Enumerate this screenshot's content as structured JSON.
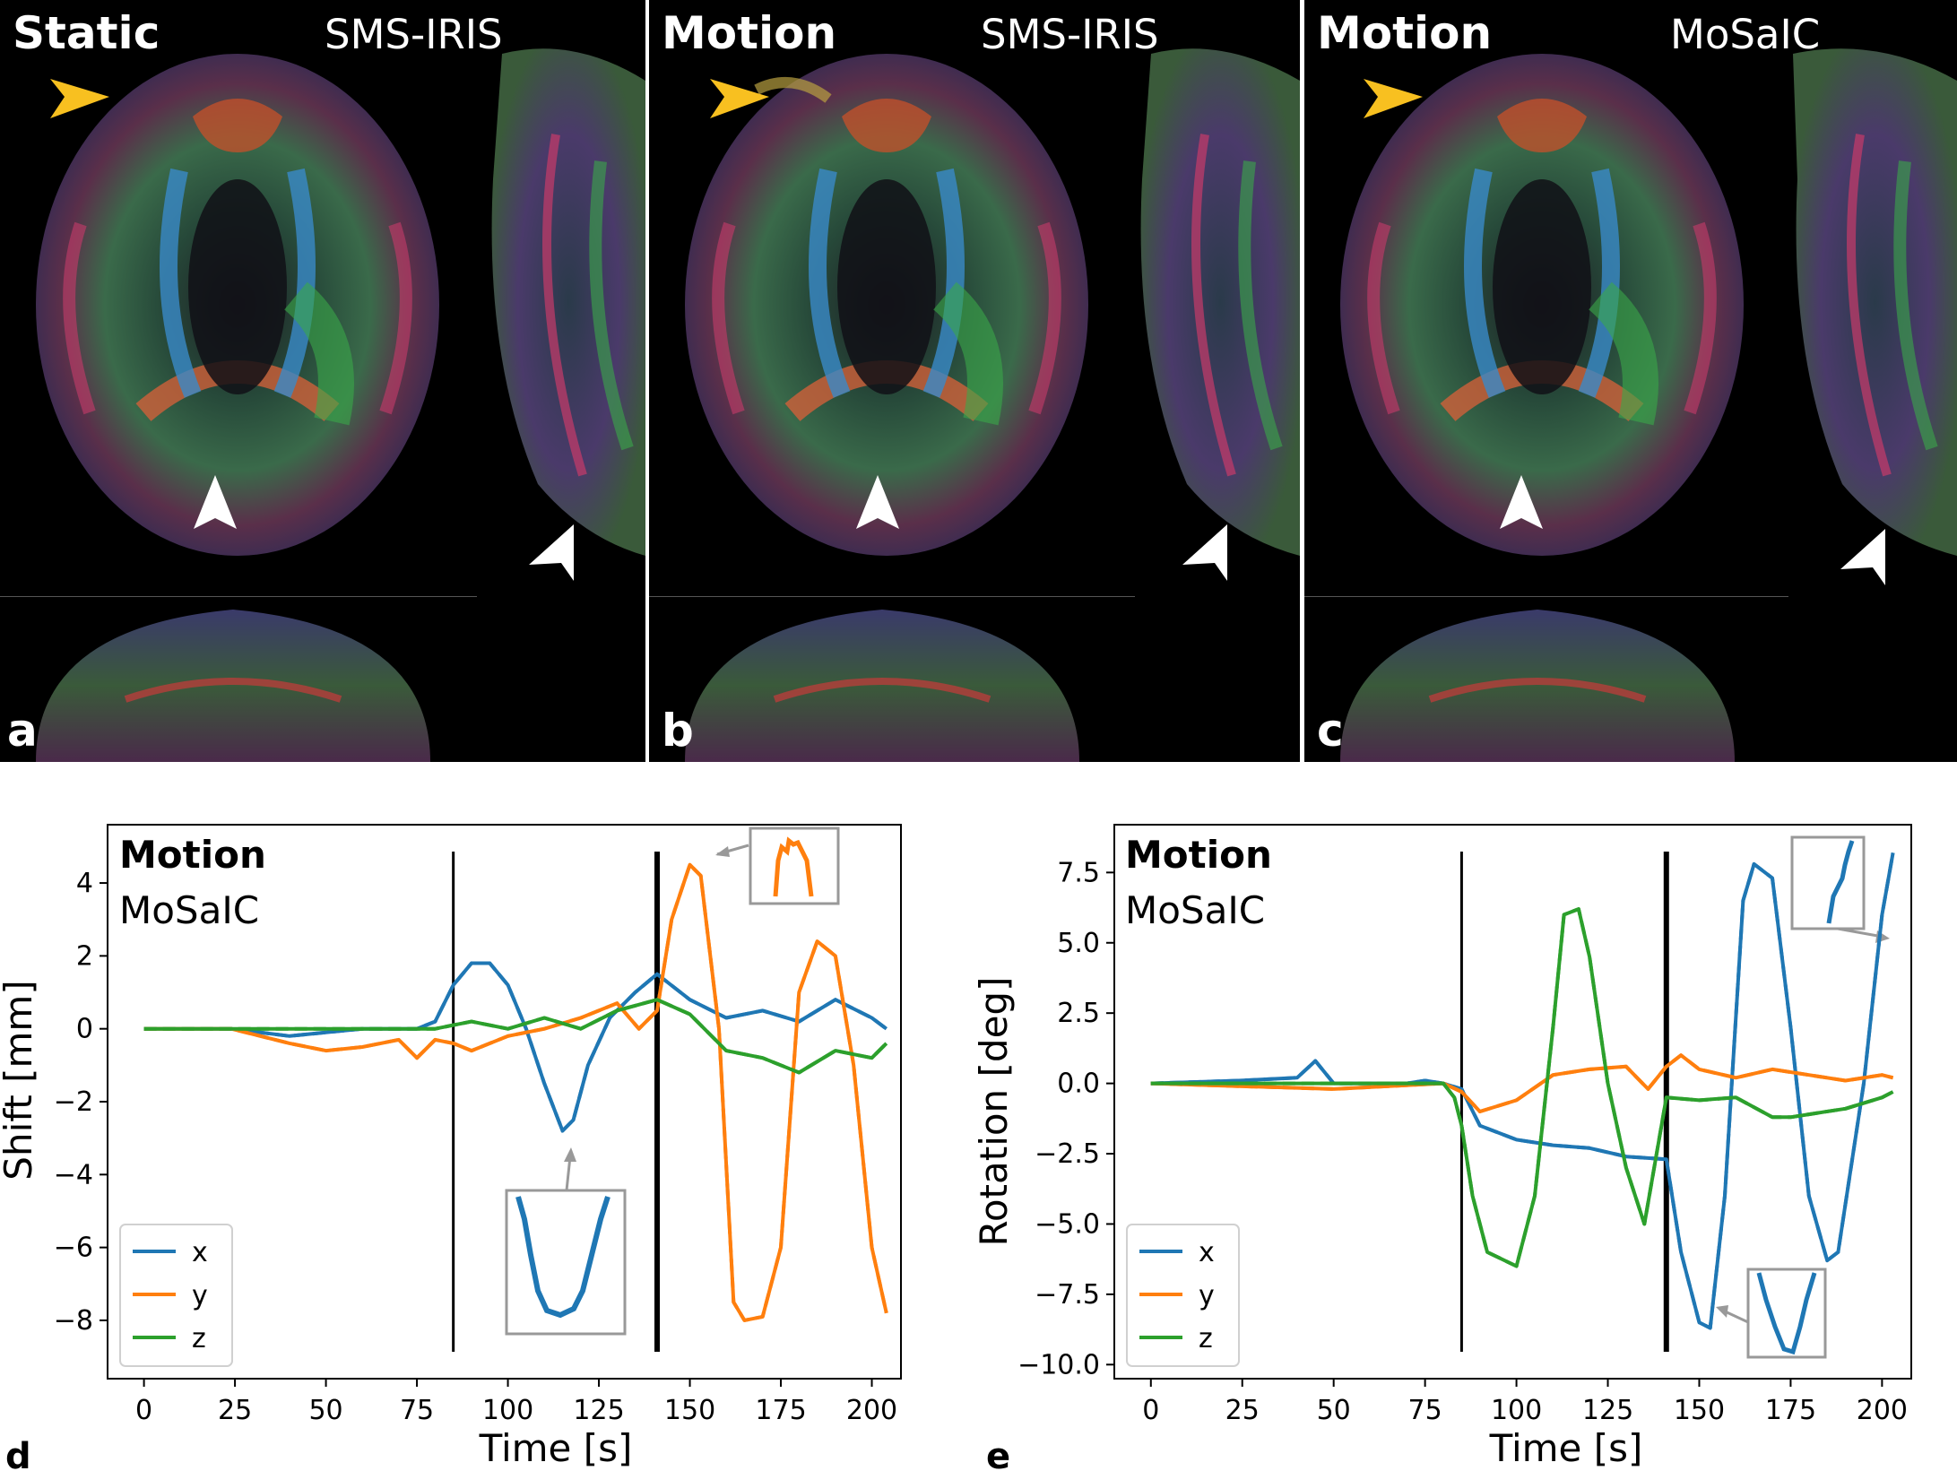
{
  "panels": [
    {
      "letter": "a",
      "title": "Static",
      "sequence": "SMS-IRIS"
    },
    {
      "letter": "b",
      "title": "Motion",
      "sequence": "SMS-IRIS"
    },
    {
      "letter": "c",
      "title": "Motion",
      "sequence": "MoSaIC"
    }
  ],
  "arrow_colors": {
    "yellow": "#F8C020",
    "white": "#FFFFFF"
  },
  "chart_data": [
    {
      "panel_letter": "d",
      "type": "line",
      "title": "Motion",
      "subtitle": "MoSaIC",
      "xlabel": "Time [s]",
      "ylabel": "Shift [mm]",
      "xlim": [
        -10,
        208
      ],
      "ylim": [
        -9.6,
        5.6
      ],
      "xticks": [
        0,
        25,
        50,
        75,
        100,
        125,
        150,
        175,
        200
      ],
      "yticks": [
        4,
        2,
        0,
        -2,
        -4,
        -6,
        -8
      ],
      "ytick_labels": [
        "4",
        "2",
        "0",
        "−2",
        "−4",
        "−6",
        "−8"
      ],
      "vlines": [
        {
          "x": 85,
          "width": "thin"
        },
        {
          "x": 141,
          "width": "thick"
        }
      ],
      "legend": {
        "position": "lower-left",
        "entries": [
          "x",
          "y",
          "z"
        ]
      },
      "series": [
        {
          "name": "x",
          "color": "#1f77b4",
          "x": [
            0,
            24,
            40,
            60,
            75,
            80,
            85,
            90,
            95,
            100,
            105,
            110,
            115,
            118,
            122,
            128,
            135,
            141,
            150,
            160,
            170,
            180,
            190,
            200,
            204
          ],
          "y": [
            0,
            0,
            -0.2,
            0,
            0,
            0.2,
            1.2,
            1.8,
            1.8,
            1.2,
            0,
            -1.5,
            -2.8,
            -2.5,
            -1.0,
            0.3,
            1.0,
            1.5,
            0.8,
            0.3,
            0.5,
            0.2,
            0.8,
            0.3,
            0
          ]
        },
        {
          "name": "y",
          "color": "#ff7f0e",
          "x": [
            0,
            24,
            40,
            50,
            60,
            70,
            75,
            80,
            85,
            90,
            100,
            110,
            120,
            130,
            136,
            141,
            145,
            150,
            153,
            158,
            162,
            165,
            170,
            175,
            180,
            185,
            190,
            195,
            200,
            204
          ],
          "y": [
            0,
            0,
            -0.4,
            -0.6,
            -0.5,
            -0.3,
            -0.8,
            -0.3,
            -0.4,
            -0.6,
            -0.2,
            0,
            0.3,
            0.7,
            0,
            0.5,
            3.0,
            4.5,
            4.2,
            0,
            -7.5,
            -8.0,
            -7.9,
            -6.0,
            1.0,
            2.4,
            2.0,
            -1.0,
            -6.0,
            -7.8
          ]
        },
        {
          "name": "z",
          "color": "#2ca02c",
          "x": [
            0,
            24,
            50,
            80,
            85,
            90,
            100,
            110,
            120,
            130,
            141,
            150,
            160,
            170,
            180,
            190,
            200,
            204
          ],
          "y": [
            0,
            0,
            0,
            0,
            0.1,
            0.2,
            0,
            0.3,
            0,
            0.5,
            0.8,
            0.4,
            -0.6,
            -0.8,
            -1.2,
            -0.6,
            -0.8,
            -0.4
          ]
        }
      ]
    },
    {
      "panel_letter": "e",
      "type": "line",
      "title": "Motion",
      "subtitle": "MoSaIC",
      "xlabel": "Time [s]",
      "ylabel": "Rotation [deg]",
      "xlim": [
        -10,
        208
      ],
      "ylim": [
        -10.5,
        9.2
      ],
      "xticks": [
        0,
        25,
        50,
        75,
        100,
        125,
        150,
        175,
        200
      ],
      "yticks": [
        7.5,
        5.0,
        2.5,
        0.0,
        -2.5,
        -5.0,
        -7.5,
        -10.0
      ],
      "ytick_labels": [
        "7.5",
        "5.0",
        "2.5",
        "0.0",
        "−2.5",
        "−5.0",
        "−7.5",
        "−10.0"
      ],
      "vlines": [
        {
          "x": 85,
          "width": "thin"
        },
        {
          "x": 141,
          "width": "thick"
        }
      ],
      "legend": {
        "position": "lower-left",
        "entries": [
          "x",
          "y",
          "z"
        ]
      },
      "series": [
        {
          "name": "x",
          "color": "#1f77b4",
          "x": [
            0,
            24,
            40,
            45,
            50,
            70,
            75,
            80,
            85,
            90,
            100,
            110,
            120,
            130,
            141,
            145,
            150,
            153,
            157,
            162,
            165,
            170,
            175,
            180,
            185,
            188,
            195,
            200,
            203
          ],
          "y": [
            0,
            0.1,
            0.2,
            0.8,
            0,
            0,
            0.1,
            0,
            -0.2,
            -1.5,
            -2.0,
            -2.2,
            -2.3,
            -2.6,
            -2.7,
            -6.0,
            -8.5,
            -8.7,
            -4.0,
            6.5,
            7.8,
            7.3,
            2.0,
            -4.0,
            -6.3,
            -6.0,
            0,
            6.0,
            8.2
          ]
        },
        {
          "name": "y",
          "color": "#ff7f0e",
          "x": [
            0,
            24,
            50,
            80,
            85,
            90,
            100,
            110,
            120,
            130,
            136,
            141,
            145,
            150,
            160,
            170,
            180,
            190,
            200,
            203
          ],
          "y": [
            0,
            -0.1,
            -0.2,
            0,
            -0.3,
            -1.0,
            -0.6,
            0.3,
            0.5,
            0.6,
            -0.2,
            0.6,
            1.0,
            0.5,
            0.2,
            0.5,
            0.3,
            0.1,
            0.3,
            0.2
          ]
        },
        {
          "name": "z",
          "color": "#2ca02c",
          "x": [
            0,
            24,
            80,
            83,
            85,
            88,
            92,
            100,
            105,
            110,
            113,
            117,
            120,
            125,
            130,
            135,
            141,
            150,
            160,
            170,
            175,
            180,
            190,
            200,
            203
          ],
          "y": [
            0,
            0,
            0,
            -0.5,
            -1.5,
            -4.0,
            -6.0,
            -6.5,
            -4.0,
            2.0,
            6.0,
            6.2,
            4.5,
            0,
            -3.0,
            -5.0,
            -0.5,
            -0.6,
            -0.5,
            -1.2,
            -1.2,
            -1.1,
            -0.9,
            -0.5,
            -0.3
          ]
        }
      ]
    }
  ]
}
